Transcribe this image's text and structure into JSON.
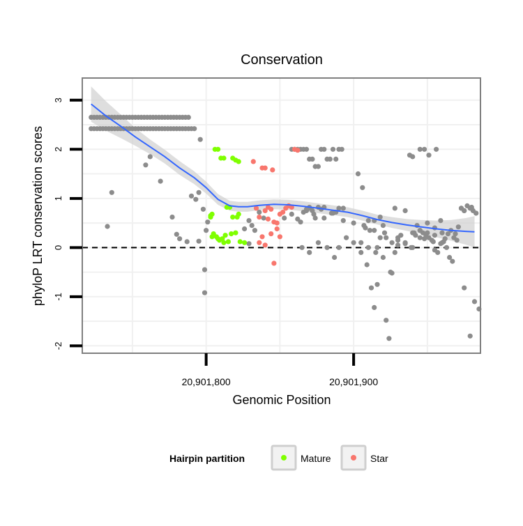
{
  "chart_data": {
    "type": "scatter",
    "title": "Conservation",
    "xlabel": "Genomic Position",
    "ylabel": "phyloP LRT conservation scores",
    "xlim": [
      20901716,
      20901986
    ],
    "ylim": [
      -2.15,
      3.45
    ],
    "x_ticks": [
      {
        "value": 20901800,
        "label": "20,901,800"
      },
      {
        "value": 20901900,
        "label": "20,901,900"
      }
    ],
    "y_ticks": [
      {
        "value": 3,
        "label": "3"
      },
      {
        "value": 2,
        "label": "2"
      },
      {
        "value": 1,
        "label": "1"
      },
      {
        "value": 0,
        "label": "0"
      },
      {
        "value": -1,
        "label": "-1"
      },
      {
        "value": -2,
        "label": "-2"
      }
    ],
    "reference_line": {
      "y": 0,
      "style": "dashed"
    },
    "grid": true,
    "legend": {
      "title": "Hairpin partition",
      "position": "bottom",
      "entries": [
        {
          "name": "Mature",
          "color": "#7FFF00"
        },
        {
          "name": "Star",
          "color": "#F8766D"
        }
      ]
    },
    "colors": {
      "Other": "#8c8c8c",
      "Mature": "#7FFF00",
      "Star": "#F8766D",
      "smooth": "#3366FF",
      "band": "#d3d3d3"
    },
    "series": [
      {
        "name": "Other",
        "x": [
          20901722,
          20901724,
          20901726,
          20901728,
          20901730,
          20901732,
          20901734,
          20901736,
          20901738,
          20901740,
          20901742,
          20901744,
          20901746,
          20901748,
          20901750,
          20901752,
          20901754,
          20901756,
          20901758,
          20901760,
          20901762,
          20901764,
          20901766,
          20901768,
          20901770,
          20901772,
          20901774,
          20901776,
          20901778,
          20901780,
          20901782,
          20901784,
          20901786,
          20901788,
          20901722,
          20901724,
          20901726,
          20901728,
          20901730,
          20901732,
          20901734,
          20901736,
          20901738,
          20901740,
          20901742,
          20901744,
          20901746,
          20901748,
          20901750,
          20901752,
          20901754,
          20901756,
          20901758,
          20901760,
          20901762,
          20901764,
          20901766,
          20901768,
          20901770,
          20901772,
          20901774,
          20901776,
          20901778,
          20901780,
          20901782,
          20901784,
          20901786,
          20901788,
          20901790,
          20901792,
          20901733,
          20901736,
          20901759,
          20901762,
          20901769,
          20901777,
          20901780,
          20901782,
          20901787,
          20901790,
          20901793,
          20901795,
          20901796,
          20901798,
          20901799,
          20901799,
          20901801,
          20901795,
          20901800,
          20901826,
          20901829,
          20901831,
          20901833,
          20901836,
          20901839,
          20901829,
          20901853,
          20901858,
          20901862,
          20901864,
          20901866,
          20901868,
          20901870,
          20901872,
          20901870,
          20901873,
          20901876,
          20901878,
          20901880,
          20901885,
          20901888,
          20901890,
          20901893,
          20901858,
          20901860,
          20901862,
          20901864,
          20901866,
          20901868,
          20901870,
          20901872,
          20901874,
          20901876,
          20901878,
          20901880,
          20901882,
          20901884,
          20901886,
          20901888,
          20901890,
          20901892,
          20901865,
          20901870,
          20901876,
          20901882,
          20901887,
          20901890,
          20901895,
          20901900,
          20901905,
          20901910,
          20901915,
          20901918,
          20901922,
          20901926,
          20901930,
          20901935,
          20901940,
          20901945,
          20901950,
          20901955,
          20901960,
          20901868,
          20901874,
          20901880,
          20901886,
          20901893,
          20901900,
          20901907,
          20901914,
          20901921,
          20901928,
          20901935,
          20901942,
          20901948,
          20901954,
          20901960,
          20901903,
          20901906,
          20901908,
          20901910,
          20901912,
          20901914,
          20901916,
          20901918,
          20901920,
          20901922,
          20901924,
          20901926,
          20901928,
          20901930,
          20901932,
          20901939,
          20901941,
          20901943,
          20901945,
          20901947,
          20901949,
          20901951,
          20901953,
          20901955,
          20901957,
          20901959,
          20901961,
          20901963,
          20901965,
          20901967,
          20901969,
          20901971,
          20901973,
          20901975,
          20901905,
          20901909,
          20901911,
          20901914,
          20901916,
          20901920,
          20901925,
          20901930,
          20901935,
          20901940,
          20901945,
          20901950,
          20901955,
          20901959,
          20901962,
          20901964,
          20901966,
          20901968,
          20901970,
          20901973,
          20901975,
          20901977,
          20901979,
          20901981,
          20901983,
          20901975,
          20901979,
          20901982,
          20901985,
          20901983,
          20901980,
          20901945,
          20901948,
          20901951,
          20901956,
          20901940,
          20901938
        ],
        "y": [
          2.65,
          2.65,
          2.65,
          2.65,
          2.65,
          2.65,
          2.65,
          2.65,
          2.65,
          2.65,
          2.65,
          2.65,
          2.65,
          2.65,
          2.65,
          2.65,
          2.65,
          2.65,
          2.65,
          2.65,
          2.65,
          2.65,
          2.65,
          2.65,
          2.65,
          2.65,
          2.65,
          2.65,
          2.65,
          2.65,
          2.65,
          2.65,
          2.65,
          2.65,
          2.42,
          2.42,
          2.42,
          2.42,
          2.42,
          2.42,
          2.42,
          2.42,
          2.42,
          2.42,
          2.42,
          2.42,
          2.42,
          2.42,
          2.42,
          2.42,
          2.42,
          2.42,
          2.42,
          2.42,
          2.42,
          2.42,
          2.42,
          2.42,
          2.42,
          2.42,
          2.42,
          2.42,
          2.42,
          2.42,
          2.42,
          2.42,
          2.42,
          2.42,
          2.42,
          2.42,
          0.43,
          1.12,
          1.68,
          1.85,
          1.35,
          0.62,
          0.27,
          0.18,
          0.12,
          1.05,
          0.98,
          1.12,
          2.2,
          0.78,
          -0.92,
          -0.45,
          0.52,
          0.13,
          0.35,
          0.38,
          0.55,
          0.45,
          0.35,
          0.72,
          0.6,
          0.08,
          0.6,
          0.68,
          0.58,
          0.52,
          0.72,
          0.78,
          0.8,
          0.75,
          0.82,
          0.68,
          0.82,
          0.78,
          0.6,
          0.7,
          0.72,
          0.8,
          0.8,
          2.0,
          2.0,
          2.0,
          2.0,
          2.0,
          2.0,
          1.8,
          1.8,
          1.65,
          1.65,
          2.0,
          2.0,
          1.8,
          1.8,
          2.0,
          1.8,
          2.0,
          2.0,
          0.0,
          -0.1,
          0.1,
          0.0,
          -0.2,
          0.0,
          0.2,
          0.1,
          0.1,
          0.0,
          -0.1,
          0.2,
          0.2,
          0.1,
          0.05,
          0.1,
          0.0,
          0.2,
          0.3,
          0.25,
          0.3,
          0.75,
          0.6,
          0.82,
          0.7,
          0.55,
          0.5,
          0.45,
          0.35,
          0.3,
          0.8,
          0.75,
          0.25,
          0.18,
          0.12,
          0.1,
          1.5,
          1.22,
          0.4,
          0.55,
          -0.82,
          -1.22,
          -0.75,
          0.62,
          0.45,
          -1.48,
          -1.85,
          -0.52,
          -0.1,
          0.15,
          0.25,
          0.0,
          0.3,
          0.45,
          0.35,
          0.3,
          0.25,
          0.2,
          0.15,
          -0.05,
          -0.1,
          0.08,
          0.12,
          0.0,
          -0.2,
          -0.28,
          0.28,
          0.42,
          0.8,
          0.75,
          -0.1,
          -0.35,
          0.35,
          0.55,
          0.0,
          -0.2,
          -0.5,
          0.2,
          0.08,
          0.3,
          0.35,
          0.5,
          0.4,
          0.55,
          0.18,
          0.28,
          0.35,
          0.2,
          0.15,
          0.8,
          0.75,
          0.85,
          0.8,
          0.75,
          0.7,
          -0.82,
          -1.8,
          -1.1,
          -1.25,
          0.7,
          0.82,
          2.0,
          2.0,
          1.88,
          2.0,
          1.85,
          1.88
        ]
      },
      {
        "name": "Mature",
        "x": [
          20901803,
          20901804,
          20901806,
          20901808,
          20901810,
          20901812,
          20901814,
          20901816,
          20901818,
          20901820,
          20901822,
          20901805,
          20901807,
          20901809,
          20901811,
          20901813,
          20901815,
          20901804,
          20901808,
          20901812,
          20901818,
          20901822,
          20901826,
          20901803,
          20901805,
          20901817,
          20901820,
          20901821,
          20901823
        ],
        "y": [
          0.65,
          0.68,
          2.0,
          2.0,
          1.82,
          1.82,
          0.82,
          0.82,
          1.82,
          1.78,
          1.75,
          0.28,
          0.22,
          0.15,
          0.18,
          0.25,
          0.12,
          0.22,
          0.18,
          0.1,
          0.62,
          0.68,
          0.1,
          0.62,
          0.25,
          0.28,
          0.3,
          0.62,
          0.12
        ]
      },
      {
        "name": "Star",
        "x": [
          20901832,
          20901838,
          20901840,
          20901845,
          20901860,
          20901862,
          20901834,
          20901836,
          20901840,
          20901842,
          20901844,
          20901846,
          20901848,
          20901850,
          20901852,
          20901854,
          20901856,
          20901858,
          20901842,
          20901848,
          20901850,
          20901836,
          20901840,
          20901844,
          20901838,
          20901846
        ],
        "y": [
          1.75,
          1.62,
          1.62,
          1.58,
          2.0,
          1.98,
          0.8,
          0.62,
          0.75,
          0.82,
          0.78,
          0.52,
          0.5,
          0.68,
          0.72,
          0.8,
          0.85,
          0.82,
          0.58,
          0.38,
          0.22,
          0.1,
          0.05,
          0.28,
          0.22,
          -0.32
        ]
      }
    ],
    "smooth": {
      "x": [
        20901722,
        20901732,
        20901742,
        20901752,
        20901762,
        20901772,
        20901782,
        20901792,
        20901800,
        20901808,
        20901816,
        20901822,
        20901828,
        20901836,
        20901846,
        20901856,
        20901866,
        20901876,
        20901886,
        20901896,
        20901906,
        20901916,
        20901926,
        20901936,
        20901946,
        20901956,
        20901966,
        20901976,
        20901982
      ],
      "y": [
        2.92,
        2.68,
        2.47,
        2.25,
        2.05,
        1.85,
        1.62,
        1.42,
        1.22,
        0.98,
        0.85,
        0.83,
        0.83,
        0.86,
        0.88,
        0.87,
        0.84,
        0.8,
        0.76,
        0.72,
        0.65,
        0.57,
        0.51,
        0.46,
        0.42,
        0.38,
        0.35,
        0.33,
        0.32
      ],
      "se": [
        0.36,
        0.3,
        0.24,
        0.18,
        0.15,
        0.14,
        0.14,
        0.13,
        0.12,
        0.11,
        0.1,
        0.1,
        0.1,
        0.1,
        0.1,
        0.1,
        0.1,
        0.1,
        0.1,
        0.1,
        0.1,
        0.1,
        0.11,
        0.12,
        0.14,
        0.17,
        0.21,
        0.27,
        0.32
      ]
    }
  }
}
